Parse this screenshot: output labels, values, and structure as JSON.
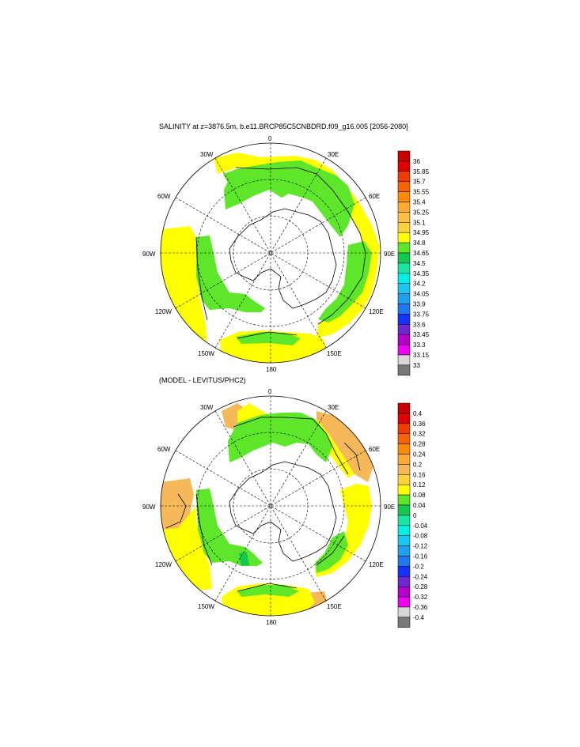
{
  "panels": [
    {
      "title": "SALINITY at z=3876.5m, b.e11.BRCP85C5CNBDRD.f09_g16.005 [2056-2080]",
      "legend_labels": [
        "36",
        "35.85",
        "35.7",
        "35.55",
        "35.4",
        "35.25",
        "35.1",
        "34.95",
        "34.8",
        "34.65",
        "34.5",
        "34.35",
        "34.2",
        "34.05",
        "33.9",
        "33.75",
        "33.6",
        "33.45",
        "33.3",
        "33.15",
        "33"
      ],
      "legend_colors": [
        "#c80000",
        "#e00000",
        "#f03c00",
        "#fa6400",
        "#ff8c00",
        "#ffaa33",
        "#ffc040",
        "#ffd23c",
        "#ffff00",
        "#5ee62a",
        "#14c850",
        "#19e6a0",
        "#00f0e6",
        "#19c8f0",
        "#1ea0f0",
        "#1e78f0",
        "#1432ff",
        "#6e28d2",
        "#b400c8",
        "#f000f0",
        "#d7d7d7",
        "#787878"
      ]
    },
    {
      "title": "(MODEL - LEVITUS/PHC2)",
      "legend_labels": [
        "0.4",
        "0.36",
        "0.32",
        "0.28",
        "0.24",
        "0.2",
        "0.16",
        "0.12",
        "0.08",
        "0.04",
        "0",
        "-0.04",
        "-0.08",
        "-0.12",
        "-0.16",
        "-0.2",
        "-0.24",
        "-0.28",
        "-0.32",
        "-0.36",
        "-0.4"
      ],
      "legend_colors": [
        "#c80000",
        "#e00000",
        "#f03c00",
        "#fa6400",
        "#ff8c00",
        "#ffaa33",
        "#f5b95a",
        "#ffd23c",
        "#ffff00",
        "#5ee62a",
        "#14c850",
        "#19e6a0",
        "#00f0e6",
        "#19c8f0",
        "#1ea0f0",
        "#1e78f0",
        "#1432ff",
        "#6e28d2",
        "#b400c8",
        "#f000f0",
        "#d7d7d7",
        "#787878"
      ]
    }
  ],
  "map_labels": [
    "0",
    "30E",
    "60E",
    "90E",
    "120E",
    "150E",
    "180",
    "150W",
    "120W",
    "90W",
    "60W",
    "30W"
  ]
}
